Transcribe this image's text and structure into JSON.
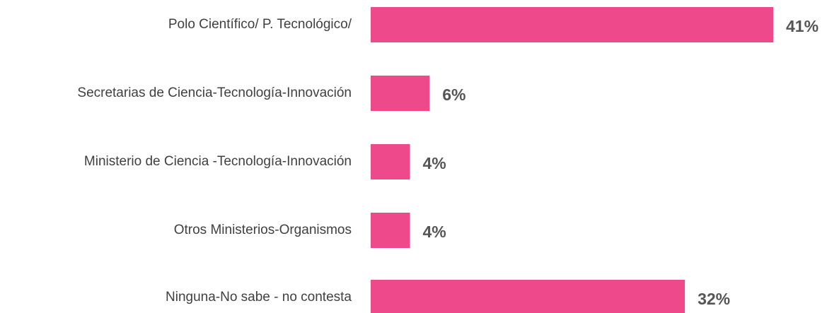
{
  "chart_data": {
    "type": "bar",
    "orientation": "horizontal",
    "categories": [
      "Polo Científico/ P. Tecnológico/",
      "Secretarias de Ciencia-Tecnología-Innovación",
      "Ministerio de Ciencia -Tecnología-Innovación",
      "Otros Ministerios-Organismos",
      "Ninguna-No sabe - no contesta"
    ],
    "values": [
      41,
      6,
      4,
      4,
      32
    ],
    "value_labels": [
      "41%",
      "6%",
      "4%",
      "4%",
      "32%"
    ],
    "color": "#ee4a8b"
  }
}
